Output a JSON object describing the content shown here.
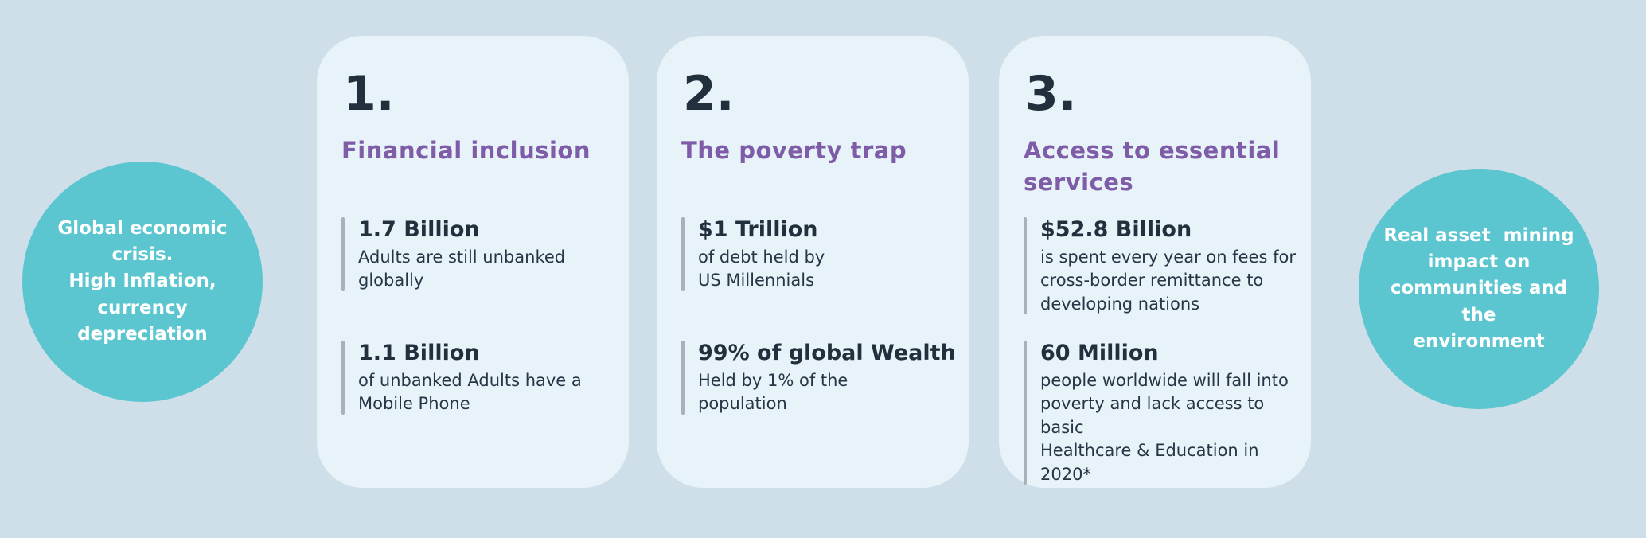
{
  "slide": {
    "colors": {
      "background": "#cfdfea",
      "card_background": "#e7f3f9",
      "circle_teal": "#5cc6d0",
      "heading_purple": "#7e5ca7",
      "text_dark_navy": "#22303d",
      "stat_bar_gray": "#a7b1b8",
      "circle_text": "#ffffff"
    }
  },
  "left_circle": {
    "text": "Global economic\ncrisis.\nHigh Inflation,\ncurrency\ndepreciation"
  },
  "right_circle": {
    "text": "Real asset  mining\nimpact on\ncommunities and the\nenvironment"
  },
  "cards": [
    {
      "number": "1.",
      "title": "Financial inclusion",
      "stats": [
        {
          "value": "1.7 Billion",
          "description": "Adults are still unbanked\nglobally"
        },
        {
          "value": "1.1 Billion",
          "description": "of unbanked Adults have a\nMobile Phone"
        }
      ]
    },
    {
      "number": "2.",
      "title": "The poverty trap",
      "stats": [
        {
          "value": "$1 Trillion",
          "description": "of debt held by\nUS Millennials"
        },
        {
          "value": "99% of global Wealth",
          "description": "Held by 1% of the\npopulation"
        }
      ]
    },
    {
      "number": "3.",
      "title": "Access to essential\nservices",
      "stats": [
        {
          "value": "$52.8 Billion",
          "description": "is spent every year on fees for\ncross-border remittance to\ndeveloping nations"
        },
        {
          "value": "60 Million",
          "description": "people worldwide will fall into\npoverty and lack access to basic\nHealthcare & Education in 2020*"
        }
      ]
    }
  ]
}
